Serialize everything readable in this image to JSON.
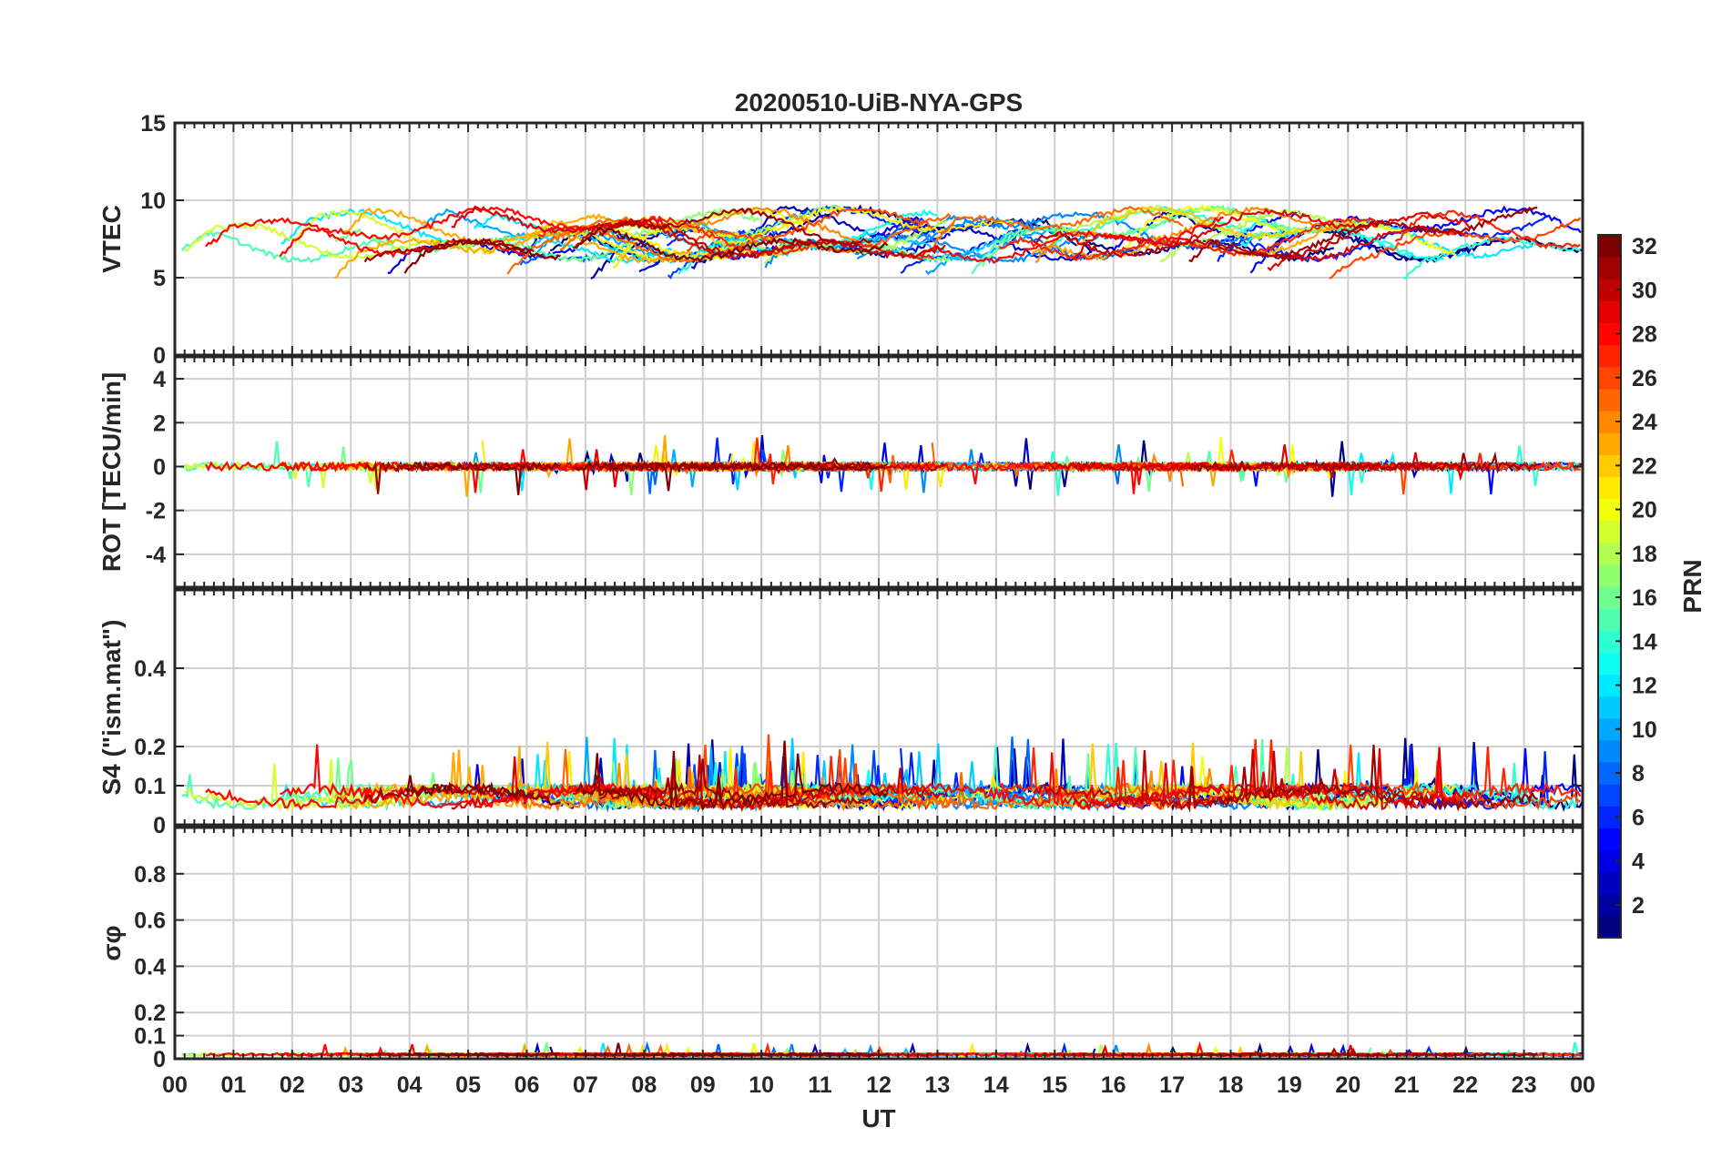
{
  "chart_data": {
    "type": "line",
    "title": "20200510-UiB-NYA-GPS",
    "xlabel": "UT",
    "x_ticks": [
      "00",
      "01",
      "02",
      "03",
      "04",
      "05",
      "06",
      "07",
      "08",
      "09",
      "10",
      "11",
      "12",
      "13",
      "14",
      "15",
      "16",
      "17",
      "18",
      "19",
      "20",
      "21",
      "22",
      "23",
      "00"
    ],
    "xlim_hours": [
      0,
      24
    ],
    "grid": true,
    "panels": [
      {
        "ylabel": "VTEC",
        "ylim": [
          0,
          15
        ],
        "yticks": [
          0,
          5,
          10,
          15
        ],
        "ytick_labels": [
          "0",
          "5",
          "10",
          "15"
        ],
        "typical_range": [
          5.5,
          10.5
        ],
        "baseline": 8
      },
      {
        "ylabel": "ROT [TECU/min]",
        "ylim": [
          -5.5,
          5
        ],
        "yticks": [
          -4,
          -2,
          0,
          2,
          4
        ],
        "ytick_labels": [
          "-4",
          "-2",
          "0",
          "2",
          "4"
        ],
        "typical_range": [
          -2.4,
          2.3
        ],
        "baseline": 0
      },
      {
        "ylabel": "S4 (\"ism.mat\")",
        "ylim": [
          0,
          0.6
        ],
        "yticks": [
          0,
          0.1,
          0.2,
          0.4
        ],
        "ytick_labels": [
          "0",
          "0.1",
          "0.2",
          "0.4"
        ],
        "typical_range": [
          0.03,
          0.36
        ],
        "baseline": 0.07
      },
      {
        "ylabel": "σφ",
        "ylim": [
          0,
          1
        ],
        "yticks": [
          0,
          0.1,
          0.2,
          0.4,
          0.6,
          0.8
        ],
        "ytick_labels": [
          "0",
          "0.1",
          "0.2",
          "0.4",
          "0.6",
          "0.8"
        ],
        "typical_range": [
          0,
          0.12
        ],
        "baseline": 0.02
      }
    ],
    "colorbar": {
      "label": "PRN",
      "range": [
        1,
        32
      ],
      "ticks": [
        2,
        4,
        6,
        8,
        10,
        12,
        14,
        16,
        18,
        20,
        22,
        24,
        26,
        28,
        30,
        32
      ],
      "tick_labels": [
        "2",
        "4",
        "6",
        "8",
        "10",
        "12",
        "14",
        "16",
        "18",
        "20",
        "22",
        "24",
        "26",
        "28",
        "30",
        "32"
      ],
      "colormap": "jet"
    }
  }
}
